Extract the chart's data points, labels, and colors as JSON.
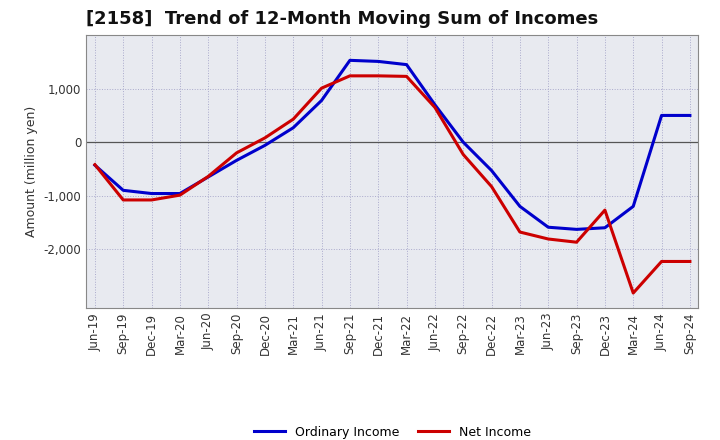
{
  "title": "[2158]  Trend of 12-Month Moving Sum of Incomes",
  "ylabel": "Amount (million yen)",
  "x_labels": [
    "Jun-19",
    "Sep-19",
    "Dec-19",
    "Mar-20",
    "Jun-20",
    "Sep-20",
    "Dec-20",
    "Mar-21",
    "Jun-21",
    "Sep-21",
    "Dec-21",
    "Mar-22",
    "Jun-22",
    "Sep-22",
    "Dec-22",
    "Mar-23",
    "Jun-23",
    "Sep-23",
    "Dec-23",
    "Mar-24",
    "Jun-24",
    "Sep-24"
  ],
  "ordinary_income": [
    -430,
    -900,
    -960,
    -960,
    -650,
    -340,
    -60,
    270,
    780,
    1530,
    1510,
    1450,
    700,
    0,
    -530,
    -1200,
    -1590,
    -1630,
    -1600,
    -1200,
    500,
    500
  ],
  "net_income": [
    -420,
    -1080,
    -1080,
    -990,
    -640,
    -200,
    80,
    430,
    1010,
    1240,
    1240,
    1230,
    650,
    -230,
    -830,
    -1680,
    -1810,
    -1870,
    -1270,
    -2820,
    -2230,
    -2230
  ],
  "ordinary_color": "#0000cc",
  "net_color": "#cc0000",
  "ylim": [
    -3100,
    2000
  ],
  "yticks": [
    -2000,
    -1000,
    0,
    1000
  ],
  "background_color": "#ffffff",
  "plot_bg_color": "#e8eaf0",
  "grid_color": "#aaaacc",
  "grid_style": ":",
  "line_width": 2.2,
  "title_fontsize": 13,
  "axis_fontsize": 8.5,
  "ylabel_fontsize": 9,
  "legend_entries": [
    "Ordinary Income",
    "Net Income"
  ]
}
